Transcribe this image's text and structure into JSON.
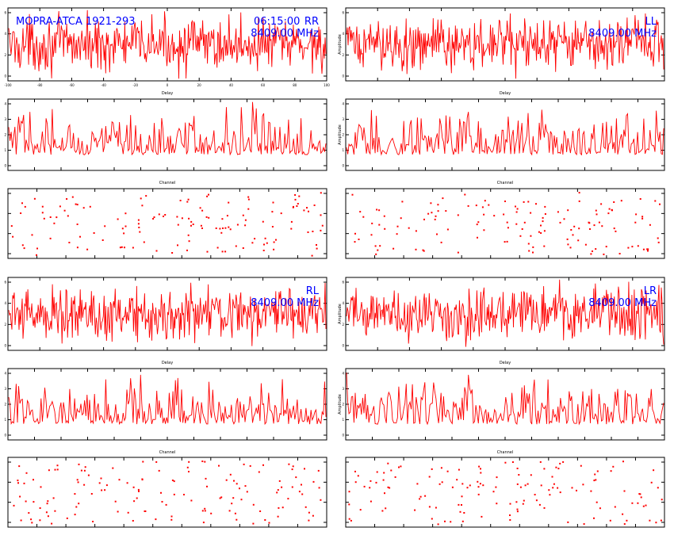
{
  "header": {
    "source": "MOPRA-ATCA 1921-293",
    "time": "06:15:00",
    "frequency": "8409.00 MHz"
  },
  "colors": {
    "trace": "#ff0000",
    "annotation": "#0000ff",
    "axes": "#000000"
  },
  "chart_data": [
    {
      "type": "line",
      "panel": "RR-delay",
      "pol_label": "RR",
      "xlabel": "Delay",
      "ylabel": "",
      "xlim": [
        -100,
        100
      ],
      "ylim": [
        0,
        6
      ],
      "n_points": 400,
      "xticks": [
        "-100",
        "-80",
        "-60",
        "-40",
        "-20",
        "0",
        "20",
        "40",
        "60",
        "80",
        "100"
      ],
      "yticks": [
        "0",
        "2",
        "4",
        "6"
      ],
      "grid": false,
      "legend": "none",
      "trace_profile": "noise around mid-level"
    },
    {
      "type": "line",
      "panel": "RR-channel",
      "xlabel": "Channel",
      "ylabel": "",
      "xlim": [
        0,
        256
      ],
      "ylim": [
        0,
        4
      ],
      "n_points": 256,
      "xticks": [
        "",
        "",
        "",
        "",
        "",
        "",
        "",
        "",
        "",
        "",
        "",
        "",
        ""
      ],
      "yticks": [
        "0",
        "1",
        "2",
        "3",
        "4"
      ],
      "grid": false,
      "legend": "none",
      "trace_profile": "amplitude spectrum"
    },
    {
      "type": "scatter",
      "panel": "RR-phase",
      "xlabel": "",
      "ylabel": "",
      "xlim": [
        0,
        256
      ],
      "ylim": [
        -180,
        180
      ],
      "n_points": 140,
      "xticks": [
        "",
        "",
        "",
        "",
        "",
        "",
        "",
        "",
        "",
        "",
        "",
        ""
      ],
      "yticks": [
        "",
        "",
        "",
        ""
      ],
      "grid": false,
      "legend": "none",
      "trace_profile": "random phase"
    },
    {
      "type": "line",
      "panel": "LL-delay",
      "pol_label": "LL",
      "xlabel": "Delay",
      "ylabel": "Amplitude",
      "xlim": [
        -100,
        100
      ],
      "ylim": [
        0,
        6
      ],
      "n_points": 400,
      "xticks": [
        "",
        "",
        "",
        "",
        "",
        "",
        "",
        "",
        "",
        "",
        ""
      ],
      "yticks": [
        "0",
        "2",
        "4",
        "6"
      ],
      "grid": false,
      "legend": "none",
      "trace_profile": "noise around mid-level"
    },
    {
      "type": "line",
      "panel": "LL-channel",
      "xlabel": "Channel",
      "ylabel": "Amplitude",
      "xlim": [
        0,
        256
      ],
      "ylim": [
        0,
        4
      ],
      "n_points": 256,
      "xticks": [
        "",
        "",
        "",
        "",
        "",
        "",
        "",
        "",
        "",
        "",
        "",
        "",
        ""
      ],
      "yticks": [
        "0",
        "1",
        "2",
        "3",
        "4"
      ],
      "grid": false,
      "legend": "none",
      "trace_profile": "amplitude spectrum"
    },
    {
      "type": "scatter",
      "panel": "LL-phase",
      "xlabel": "",
      "ylabel": "",
      "xlim": [
        0,
        256
      ],
      "ylim": [
        -180,
        180
      ],
      "n_points": 140,
      "xticks": [
        "",
        "",
        "",
        "",
        "",
        "",
        "",
        "",
        "",
        "",
        "",
        ""
      ],
      "yticks": [
        "",
        "",
        "",
        ""
      ],
      "grid": false,
      "legend": "none",
      "trace_profile": "random phase"
    },
    {
      "type": "line",
      "panel": "RL-delay",
      "pol_label": "RL",
      "xlabel": "Delay",
      "ylabel": "",
      "xlim": [
        -100,
        100
      ],
      "ylim": [
        0,
        6
      ],
      "n_points": 400,
      "xticks": [
        "",
        "",
        "",
        "",
        "",
        "",
        "",
        "",
        "",
        "",
        ""
      ],
      "yticks": [
        "0",
        "2",
        "4",
        "6"
      ],
      "grid": false,
      "legend": "none",
      "trace_profile": "noise around mid-level"
    },
    {
      "type": "line",
      "panel": "RL-channel",
      "xlabel": "Channel",
      "ylabel": "",
      "xlim": [
        0,
        256
      ],
      "ylim": [
        0,
        4
      ],
      "n_points": 256,
      "xticks": [
        "",
        "",
        "",
        "",
        "",
        "",
        "",
        "",
        "",
        "",
        "",
        "",
        ""
      ],
      "yticks": [
        "0",
        "1",
        "2",
        "3",
        "4"
      ],
      "grid": false,
      "legend": "none",
      "trace_profile": "amplitude spectrum"
    },
    {
      "type": "scatter",
      "panel": "RL-phase",
      "xlabel": "",
      "ylabel": "",
      "xlim": [
        0,
        256
      ],
      "ylim": [
        -180,
        180
      ],
      "n_points": 140,
      "xticks": [
        "",
        "",
        "",
        "",
        "",
        "",
        "",
        "",
        "",
        "",
        "",
        ""
      ],
      "yticks": [
        "",
        "",
        "",
        ""
      ],
      "grid": false,
      "legend": "none",
      "trace_profile": "random phase"
    },
    {
      "type": "line",
      "panel": "LR-delay",
      "pol_label": "LR",
      "xlabel": "Delay",
      "ylabel": "Amplitude",
      "xlim": [
        -100,
        100
      ],
      "ylim": [
        0,
        6
      ],
      "n_points": 400,
      "xticks": [
        "",
        "",
        "",
        "",
        "",
        "",
        "",
        "",
        "",
        "",
        ""
      ],
      "yticks": [
        "0",
        "2",
        "4",
        "6"
      ],
      "grid": false,
      "legend": "none",
      "trace_profile": "noise around mid-level"
    },
    {
      "type": "line",
      "panel": "LR-channel",
      "xlabel": "Channel",
      "ylabel": "Amplitude",
      "xlim": [
        0,
        256
      ],
      "ylim": [
        0,
        4
      ],
      "n_points": 256,
      "xticks": [
        "",
        "",
        "",
        "",
        "",
        "",
        "",
        "",
        "",
        "",
        "",
        "",
        ""
      ],
      "yticks": [
        "0",
        "1",
        "2",
        "3",
        "4"
      ],
      "grid": false,
      "legend": "none",
      "trace_profile": "amplitude spectrum"
    },
    {
      "type": "scatter",
      "panel": "LR-phase",
      "xlabel": "",
      "ylabel": "",
      "xlim": [
        0,
        256
      ],
      "ylim": [
        -180,
        180
      ],
      "n_points": 140,
      "xticks": [
        "",
        "",
        "",
        "",
        "",
        "",
        "",
        "",
        "",
        "",
        "",
        ""
      ],
      "yticks": [
        "",
        "",
        "",
        ""
      ],
      "grid": false,
      "legend": "none",
      "trace_profile": "random phase"
    }
  ]
}
